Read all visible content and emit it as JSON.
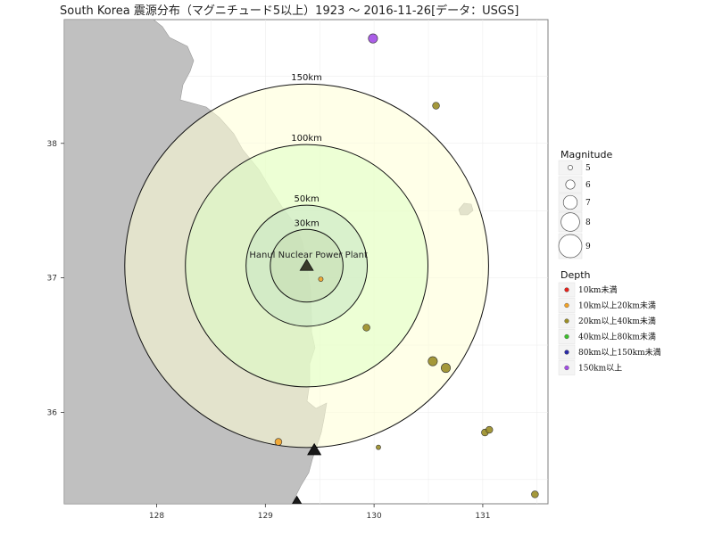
{
  "title": "South Korea 震源分布（マグニチュード5以上）1923 〜 2016-11-26[データ：USGS]",
  "chart_data": {
    "type": "scatter",
    "xlim": [
      127.15,
      131.6
    ],
    "ylim": [
      35.32,
      38.92
    ],
    "x_ticks": [
      128,
      129,
      130,
      131
    ],
    "y_ticks": [
      36,
      37,
      38
    ],
    "grid": true,
    "land_color": "#c0c0c0",
    "plant": {
      "name": "Hanul Nuclear Power Plant",
      "lon": 129.38,
      "lat": 37.09
    },
    "other_plants": [
      {
        "lon": 129.45,
        "lat": 35.72
      },
      {
        "lon": 129.29,
        "lat": 35.33
      }
    ],
    "rings": [
      {
        "label": "150km",
        "radius_km": 150,
        "fill": "#ffffd6"
      },
      {
        "label": "100km",
        "radius_km": 100,
        "fill": "#dfffc4"
      },
      {
        "label": "50km",
        "radius_km": 50,
        "fill": "#c8e6c4"
      },
      {
        "label": "30km",
        "radius_km": 30,
        "fill": "#c6ddb3"
      }
    ],
    "points": [
      {
        "lon": 129.99,
        "lat": 38.78,
        "mag": 6.0,
        "depth": "150km以上"
      },
      {
        "lon": 130.57,
        "lat": 38.28,
        "mag": 5.5,
        "depth": "20km以上40km未満"
      },
      {
        "lon": 129.93,
        "lat": 36.63,
        "mag": 5.5,
        "depth": "20km以上40km未満"
      },
      {
        "lon": 130.54,
        "lat": 36.38,
        "mag": 6.0,
        "depth": "20km以上40km未満"
      },
      {
        "lon": 130.66,
        "lat": 36.33,
        "mag": 6.0,
        "depth": "20km以上40km未満"
      },
      {
        "lon": 129.51,
        "lat": 36.99,
        "mag": 5.0,
        "depth": "10km以上20km未満"
      },
      {
        "lon": 129.12,
        "lat": 35.78,
        "mag": 5.5,
        "depth": "10km以上20km未満"
      },
      {
        "lon": 130.04,
        "lat": 35.74,
        "mag": 5.0,
        "depth": "20km以上40km未満"
      },
      {
        "lon": 131.02,
        "lat": 35.85,
        "mag": 5.5,
        "depth": "20km以上40km未満"
      },
      {
        "lon": 131.06,
        "lat": 35.87,
        "mag": 5.5,
        "depth": "20km以上40km未満"
      },
      {
        "lon": 131.48,
        "lat": 35.39,
        "mag": 5.5,
        "depth": "20km以上40km未満"
      }
    ],
    "legend": {
      "placement": "right",
      "magnitude_title": "Magnitude",
      "magnitude_items": [
        {
          "label": "5",
          "mag": 5
        },
        {
          "label": "6",
          "mag": 6
        },
        {
          "label": "7",
          "mag": 7
        },
        {
          "label": "8",
          "mag": 8
        },
        {
          "label": "9",
          "mag": 9
        }
      ],
      "depth_title": "Depth",
      "depth_items": [
        {
          "label": "10km未満",
          "color": "#e6211b"
        },
        {
          "label": "10km以上20km未満",
          "color": "#f2a227"
        },
        {
          "label": "20km以上40km未満",
          "color": "#9a8d26"
        },
        {
          "label": "40km以上80km未満",
          "color": "#3cbf2b"
        },
        {
          "label": "80km以上150km未満",
          "color": "#2b2ba8"
        },
        {
          "label": "150km以上",
          "color": "#a24ce6"
        }
      ]
    }
  }
}
